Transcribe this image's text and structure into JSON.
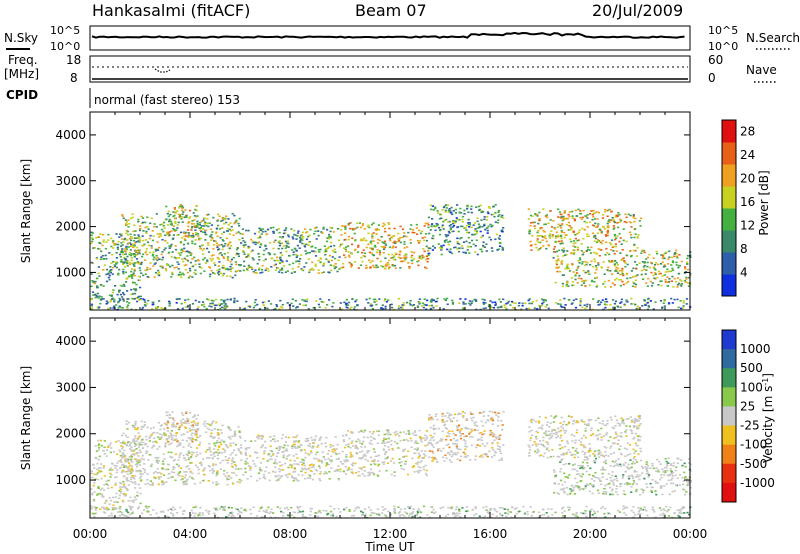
{
  "header": {
    "station": "Hankasalmi (fitACF)",
    "beam": "Beam 07",
    "date": "20/Jul/2009"
  },
  "noise_panel": {
    "left_label": "N.Sky",
    "right_label": "N.Search",
    "left_ticks": [
      "10^5",
      "10^0"
    ],
    "right_ticks": [
      "10^5",
      "10^0"
    ]
  },
  "freq_panel": {
    "label_line1": "Freq.",
    "label_line2": "[MHz]",
    "left_ticks": [
      "18",
      "8"
    ],
    "right_ticks": [
      "60",
      "0"
    ],
    "right_label": "Nave",
    "cpid_label": "CPID"
  },
  "cpid_text": "normal (fast stereo) 153",
  "chart_data": [
    {
      "type": "heatmap",
      "name": "power",
      "ylabel": "Slant Range [km]",
      "ylim": [
        180,
        4500
      ],
      "yticks": [
        1000,
        2000,
        3000,
        4000
      ],
      "xlim": [
        0,
        24
      ],
      "colorbar": {
        "label": "Power [dB]",
        "ticks": [
          4,
          8,
          12,
          16,
          20,
          24,
          28
        ],
        "range": [
          0,
          30
        ],
        "colors": [
          "#1030e0",
          "#2f5fa8",
          "#3a8a6a",
          "#44b040",
          "#c8d020",
          "#f0a020",
          "#e86018",
          "#e01010"
        ]
      },
      "echo_regions": [
        {
          "t0": 0.0,
          "t1": 2.0,
          "r0": 380,
          "r1": 1900,
          "level": 12
        },
        {
          "t0": 1.2,
          "t1": 6.0,
          "r0": 900,
          "r1": 2300,
          "level": 14
        },
        {
          "t0": 3.0,
          "t1": 4.3,
          "r0": 1800,
          "r1": 2500,
          "level": 16
        },
        {
          "t0": 6.0,
          "t1": 10.0,
          "r0": 1000,
          "r1": 2000,
          "level": 12
        },
        {
          "t0": 10.0,
          "t1": 13.5,
          "r0": 1100,
          "r1": 2100,
          "level": 18
        },
        {
          "t0": 13.5,
          "t1": 16.5,
          "r0": 1400,
          "r1": 2500,
          "level": 10
        },
        {
          "t0": 17.5,
          "t1": 22.0,
          "r0": 1500,
          "r1": 2400,
          "level": 18
        },
        {
          "t0": 18.5,
          "t1": 24.0,
          "r0": 700,
          "r1": 1500,
          "level": 16
        },
        {
          "t0": 0.0,
          "t1": 24.0,
          "r0": 200,
          "r1": 450,
          "level": 10
        }
      ]
    },
    {
      "type": "heatmap",
      "name": "velocity",
      "ylabel": "Slant Range [km]",
      "ylim": [
        180,
        4500
      ],
      "yticks": [
        1000,
        2000,
        3000,
        4000
      ],
      "xlim": [
        0,
        24
      ],
      "xlabel": "Time UT",
      "xticks": [
        "00:00",
        "04:00",
        "08:00",
        "12:00",
        "16:00",
        "20:00",
        "00:00"
      ],
      "colorbar": {
        "label": "Velocity [m s",
        "label_sup": "-1",
        "label_end": "]",
        "ticks": [
          1000,
          500,
          100,
          25,
          -25,
          -100,
          -500,
          -1000
        ],
        "colors": [
          "#1e3ad0",
          "#2f6aa0",
          "#3e9a5a",
          "#88c84a",
          "#c8c8c8",
          "#f0c020",
          "#f08018",
          "#e83010",
          "#e01010"
        ]
      },
      "echo_regions": [
        {
          "t0": 0.0,
          "t1": 2.0,
          "r0": 380,
          "r1": 1900,
          "v": 0
        },
        {
          "t0": 1.2,
          "t1": 6.0,
          "r0": 900,
          "r1": 2300,
          "v": 0
        },
        {
          "t0": 3.0,
          "t1": 4.3,
          "r0": 1800,
          "r1": 2500,
          "v": -150
        },
        {
          "t0": 6.0,
          "t1": 10.0,
          "r0": 1000,
          "r1": 2000,
          "v": 0
        },
        {
          "t0": 10.0,
          "t1": 13.5,
          "r0": 1100,
          "r1": 2100,
          "v": -60
        },
        {
          "t0": 13.5,
          "t1": 16.5,
          "r0": 1400,
          "r1": 2500,
          "v": -300
        },
        {
          "t0": 17.5,
          "t1": 22.0,
          "r0": 1500,
          "r1": 2400,
          "v": 0
        },
        {
          "t0": 18.5,
          "t1": 24.0,
          "r0": 700,
          "r1": 1500,
          "v": 80
        },
        {
          "t0": 0.0,
          "t1": 24.0,
          "r0": 200,
          "r1": 450,
          "v": 50
        }
      ]
    }
  ]
}
